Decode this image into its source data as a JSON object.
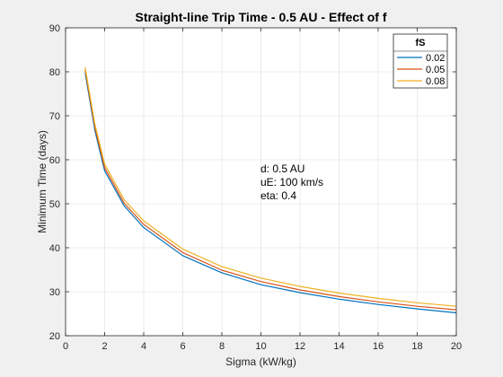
{
  "figure": {
    "background": "#f0f0f0",
    "axes_background": "#ffffff"
  },
  "chart_data": {
    "type": "line",
    "title": "Straight-line Trip Time - 0.5 AU - Effect of f",
    "xlabel": "Sigma (kW/kg)",
    "ylabel": "Minimum Time (days)",
    "xlim": [
      0,
      20
    ],
    "ylim": [
      20,
      90
    ],
    "xticks": [
      0,
      2,
      4,
      6,
      8,
      10,
      12,
      14,
      16,
      18,
      20
    ],
    "yticks": [
      20,
      30,
      40,
      50,
      60,
      70,
      80,
      90
    ],
    "grid": true,
    "legend": {
      "title": "fS",
      "placement": "top-right"
    },
    "annotation": [
      "d:  0.5 AU",
      "uE: 100 km/s",
      "eta: 0.4"
    ],
    "series": [
      {
        "name": "0.02",
        "color": "#0072BD",
        "x": [
          1,
          1.5,
          2,
          3,
          4,
          6,
          8,
          10,
          12,
          14,
          16,
          18,
          20
        ],
        "y": [
          79.8,
          66.7,
          57.5,
          49.5,
          44.6,
          38.2,
          34.3,
          31.6,
          29.8,
          28.3,
          27.1,
          26.1,
          25.2
        ]
      },
      {
        "name": "0.05",
        "color": "#D95319",
        "x": [
          1,
          1.5,
          2,
          3,
          4,
          6,
          8,
          10,
          12,
          14,
          16,
          18,
          20
        ],
        "y": [
          80.5,
          67.4,
          58.2,
          50.1,
          45.3,
          38.9,
          34.9,
          32.3,
          30.4,
          28.9,
          27.7,
          26.7,
          25.9
        ]
      },
      {
        "name": "0.08",
        "color": "#EDB120",
        "x": [
          1,
          1.5,
          2,
          3,
          4,
          6,
          8,
          10,
          12,
          14,
          16,
          18,
          20
        ],
        "y": [
          81.0,
          68.1,
          59.0,
          50.9,
          46.1,
          39.7,
          35.7,
          33.1,
          31.2,
          29.7,
          28.5,
          27.5,
          26.7
        ]
      }
    ]
  }
}
